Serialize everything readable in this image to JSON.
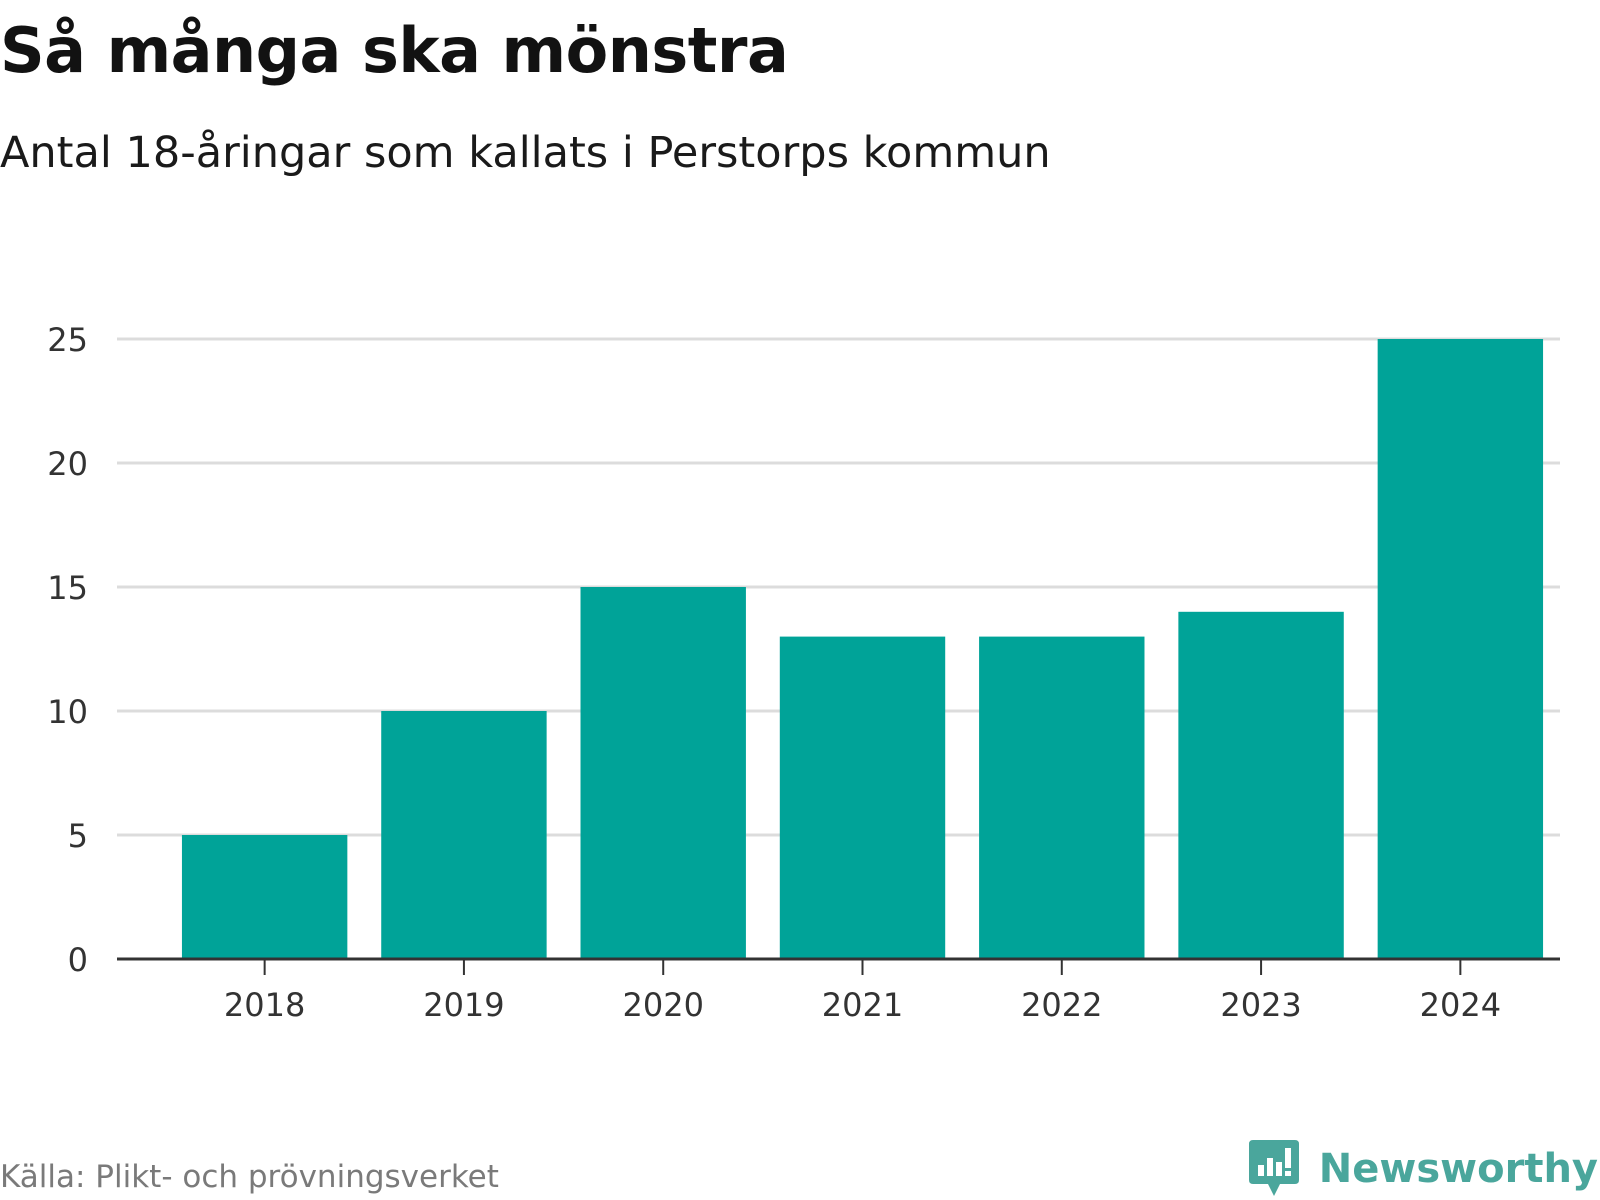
{
  "title": "Så många ska mönstra",
  "subtitle": "Antal 18-åringar som kallats i Perstorps kommun",
  "source": "Källa: Plikt- och prövningsverket",
  "brand": "Newsworthy",
  "colors": {
    "bar": "#00a398",
    "grid": "#dcdcdc",
    "axis": "#333333",
    "brand": "#4aa69c"
  },
  "chart_data": {
    "type": "bar",
    "categories": [
      "2018",
      "2019",
      "2020",
      "2021",
      "2022",
      "2023",
      "2024"
    ],
    "values": [
      5,
      10,
      15,
      13,
      13,
      14,
      25
    ],
    "title": "Så många ska mönstra",
    "subtitle": "Antal 18-åringar som kallats i Perstorps kommun",
    "xlabel": "",
    "ylabel": "",
    "ylim": [
      0,
      25
    ],
    "yticks": [
      0,
      5,
      10,
      15,
      20,
      25
    ],
    "grid": true,
    "legend": false
  }
}
